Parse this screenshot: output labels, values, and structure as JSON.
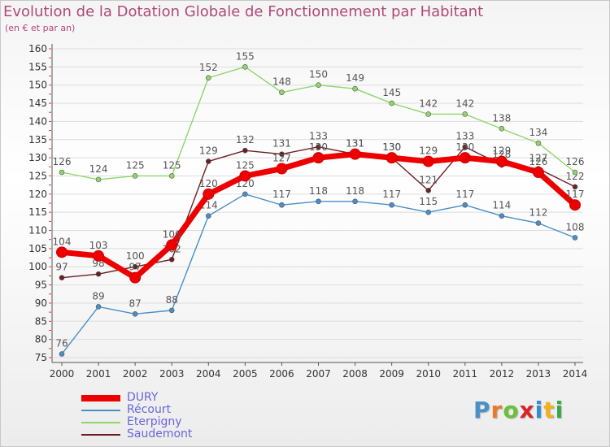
{
  "header": {
    "title": "Evolution de la Dotation Globale de Fonctionnement par Habitant",
    "subtitle": "(en € et par an)"
  },
  "logo": {
    "text": "Proxiti",
    "colors": [
      "#4a90c8",
      "#e87a2e",
      "#6cbf3a",
      "#d9262b",
      "#2f8fd0",
      "#f0b020",
      "#3aa84a"
    ]
  },
  "chart_data": {
    "type": "line",
    "title": "Evolution de la Dotation Globale de Fonctionnement par Habitant",
    "subtitle": "(en € et par an)",
    "x": [
      "2000",
      "2001",
      "2002",
      "2003",
      "2004",
      "2005",
      "2006",
      "2007",
      "2008",
      "2009",
      "2010",
      "2011",
      "2012",
      "2013",
      "2014"
    ],
    "ylim": [
      75,
      160
    ],
    "yticks": [
      75,
      80,
      85,
      90,
      95,
      100,
      105,
      110,
      115,
      120,
      125,
      130,
      135,
      140,
      145,
      150,
      155,
      160
    ],
    "grid": "horizontal",
    "legend_position": "bottom-left",
    "series": [
      {
        "name": "Saudemont",
        "color": "#6b1f24",
        "values": [
          97,
          98,
          100,
          102,
          129,
          132,
          131,
          133,
          131,
          130,
          121,
          133,
          128,
          127,
          122
        ]
      },
      {
        "name": "Eterpigny",
        "color": "#8ed66a",
        "values": [
          126,
          124,
          125,
          125,
          152,
          155,
          148,
          150,
          149,
          145,
          142,
          142,
          138,
          134,
          126
        ]
      },
      {
        "name": "Récourt",
        "color": "#4a8ec9",
        "values": [
          76,
          89,
          87,
          88,
          114,
          120,
          117,
          118,
          118,
          117,
          115,
          117,
          114,
          112,
          108
        ]
      },
      {
        "name": "DURY",
        "color": "#ee0000",
        "values": [
          104,
          103,
          97,
          106,
          120,
          125,
          127,
          130,
          131,
          130,
          129,
          130,
          129,
          126,
          117
        ]
      }
    ],
    "legend": [
      {
        "name": "DURY",
        "color": "#ee0000",
        "text_color": "#6666dd"
      },
      {
        "name": "Récourt",
        "color": "#4a8ec9",
        "text_color": "#6666dd"
      },
      {
        "name": "Eterpigny",
        "color": "#8ed66a",
        "text_color": "#6666dd"
      },
      {
        "name": "Saudemont",
        "color": "#6b1f24",
        "text_color": "#6666dd"
      }
    ]
  }
}
